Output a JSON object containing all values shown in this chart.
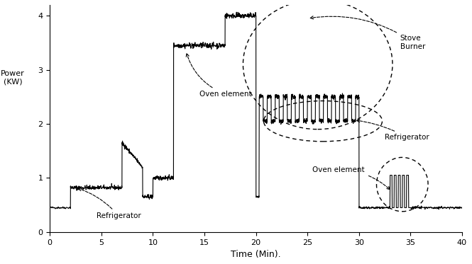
{
  "title": "",
  "xlabel": "Time (Min).",
  "ylabel": "Power\n(KW)",
  "xlim": [
    0,
    40
  ],
  "ylim": [
    0,
    4.2
  ],
  "xticks": [
    0,
    5,
    10,
    15,
    20,
    25,
    30,
    35,
    40
  ],
  "yticks": [
    0,
    1,
    2,
    3,
    4
  ],
  "bg_color": "#ffffff",
  "line_color": "#000000",
  "labels": {
    "refrigerator_left": "Refrigerator",
    "oven_element_left": "Oven element",
    "stove_burner": "Stove\nBurner",
    "refrigerator_right": "Refrigerator",
    "oven_element_right": "Oven element"
  }
}
